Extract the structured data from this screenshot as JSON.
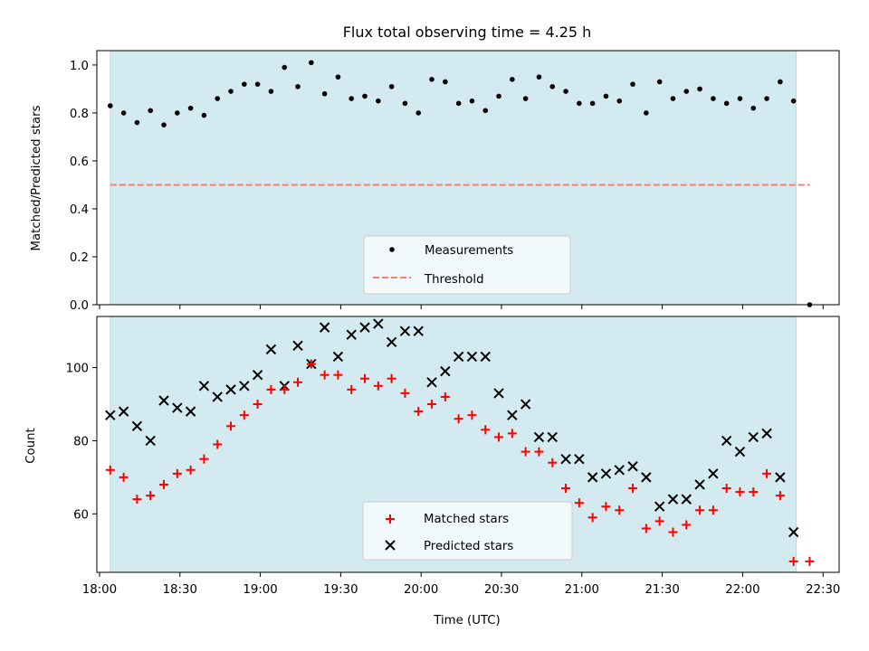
{
  "colors": {
    "shade": "#d3eaf0",
    "shade_edge": "#b5dbe3",
    "matched": "#ff0000",
    "predicted": "#000000",
    "measurement": "#000000",
    "threshold": "#f08080"
  },
  "chart_data": [
    {
      "type": "scatter",
      "title": "Flux total observing time = 4.25 h",
      "xlabel": "",
      "ylabel": "Matched/Predicted stars",
      "ylim": [
        0,
        1.06
      ],
      "xlim": [
        "17:59",
        "22:36"
      ],
      "yticks": [
        "0.0",
        "0.2",
        "0.4",
        "0.6",
        "0.8",
        "1.0"
      ],
      "shaded_span": [
        "18:04",
        "22:20"
      ],
      "legend": {
        "placement": "lower-center",
        "entries": [
          "Measurements",
          "Threshold"
        ]
      },
      "series": [
        {
          "name": "Measurements",
          "x": [
            "18:04",
            "18:09",
            "18:14",
            "18:19",
            "18:24",
            "18:29",
            "18:34",
            "18:39",
            "18:44",
            "18:49",
            "18:54",
            "18:59",
            "19:04",
            "19:09",
            "19:14",
            "19:19",
            "19:24",
            "19:29",
            "19:34",
            "19:39",
            "19:44",
            "19:49",
            "19:54",
            "19:59",
            "20:04",
            "20:09",
            "20:14",
            "20:19",
            "20:24",
            "20:29",
            "20:34",
            "20:39",
            "20:44",
            "20:49",
            "20:54",
            "20:59",
            "21:04",
            "21:09",
            "21:14",
            "21:19",
            "21:24",
            "21:29",
            "21:34",
            "21:39",
            "21:44",
            "21:49",
            "21:54",
            "21:59",
            "22:04",
            "22:09",
            "22:14",
            "22:19",
            "22:25"
          ],
          "values": [
            0.83,
            0.8,
            0.76,
            0.81,
            0.75,
            0.8,
            0.82,
            0.79,
            0.86,
            0.89,
            0.92,
            0.92,
            0.89,
            0.99,
            0.91,
            1.01,
            0.88,
            0.95,
            0.86,
            0.87,
            0.85,
            0.91,
            0.84,
            0.8,
            0.94,
            0.93,
            0.84,
            0.85,
            0.81,
            0.87,
            0.94,
            0.86,
            0.95,
            0.91,
            0.89,
            0.84,
            0.84,
            0.87,
            0.85,
            0.92,
            0.8,
            0.93,
            0.86,
            0.89,
            0.9,
            0.86,
            0.84,
            0.86,
            0.82,
            0.86,
            0.93,
            0.85,
            0.0
          ]
        },
        {
          "name": "Threshold",
          "type": "line",
          "x": [
            "18:04",
            "22:25"
          ],
          "values": [
            0.5,
            0.5
          ]
        }
      ]
    },
    {
      "type": "scatter",
      "title": "",
      "xlabel": "Time (UTC)",
      "ylabel": "Count",
      "ylim": [
        44,
        114
      ],
      "xlim": [
        "17:59",
        "22:36"
      ],
      "yticks": [
        "60",
        "80",
        "100"
      ],
      "xticks": [
        "18:00",
        "18:30",
        "19:00",
        "19:30",
        "20:00",
        "20:30",
        "21:00",
        "21:30",
        "22:00",
        "22:30"
      ],
      "shaded_span": [
        "18:04",
        "22:20"
      ],
      "legend": {
        "placement": "lower-center",
        "entries": [
          "Matched stars",
          "Predicted stars"
        ]
      },
      "series": [
        {
          "name": "Matched stars",
          "marker": "+",
          "x": [
            "18:04",
            "18:09",
            "18:14",
            "18:19",
            "18:24",
            "18:29",
            "18:34",
            "18:39",
            "18:44",
            "18:49",
            "18:54",
            "18:59",
            "19:04",
            "19:09",
            "19:14",
            "19:19",
            "19:24",
            "19:29",
            "19:34",
            "19:39",
            "19:44",
            "19:49",
            "19:54",
            "19:59",
            "20:04",
            "20:09",
            "20:14",
            "20:19",
            "20:24",
            "20:29",
            "20:34",
            "20:39",
            "20:44",
            "20:49",
            "20:54",
            "20:59",
            "21:04",
            "21:09",
            "21:14",
            "21:19",
            "21:24",
            "21:29",
            "21:34",
            "21:39",
            "21:44",
            "21:49",
            "21:54",
            "21:59",
            "22:04",
            "22:09",
            "22:14",
            "22:19",
            "22:25"
          ],
          "values": [
            72,
            70,
            64,
            65,
            68,
            71,
            72,
            75,
            79,
            84,
            87,
            90,
            94,
            94,
            96,
            101,
            98,
            98,
            94,
            97,
            95,
            97,
            93,
            88,
            90,
            92,
            86,
            87,
            83,
            81,
            82,
            77,
            77,
            74,
            67,
            63,
            59,
            62,
            61,
            67,
            56,
            58,
            55,
            57,
            61,
            61,
            67,
            66,
            66,
            71,
            65,
            47,
            47
          ]
        },
        {
          "name": "Predicted stars",
          "marker": "x",
          "x": [
            "18:04",
            "18:09",
            "18:14",
            "18:19",
            "18:24",
            "18:29",
            "18:34",
            "18:39",
            "18:44",
            "18:49",
            "18:54",
            "18:59",
            "19:04",
            "19:09",
            "19:14",
            "19:19",
            "19:24",
            "19:29",
            "19:34",
            "19:39",
            "19:44",
            "19:49",
            "19:54",
            "19:59",
            "20:04",
            "20:09",
            "20:14",
            "20:19",
            "20:24",
            "20:29",
            "20:34",
            "20:39",
            "20:44",
            "20:49",
            "20:54",
            "20:59",
            "21:04",
            "21:09",
            "21:14",
            "21:19",
            "21:24",
            "21:29",
            "21:34",
            "21:39",
            "21:44",
            "21:49",
            "21:54",
            "21:59",
            "22:04",
            "22:09",
            "22:14",
            "22:19"
          ],
          "values": [
            87,
            88,
            84,
            80,
            91,
            89,
            88,
            95,
            92,
            94,
            95,
            98,
            105,
            95,
            106,
            101,
            111,
            103,
            109,
            111,
            112,
            107,
            110,
            110,
            96,
            99,
            103,
            103,
            103,
            93,
            87,
            90,
            81,
            81,
            75,
            75,
            70,
            71,
            72,
            73,
            70,
            62,
            64,
            64,
            68,
            71,
            80,
            77,
            81,
            82,
            70,
            55
          ]
        }
      ]
    }
  ]
}
